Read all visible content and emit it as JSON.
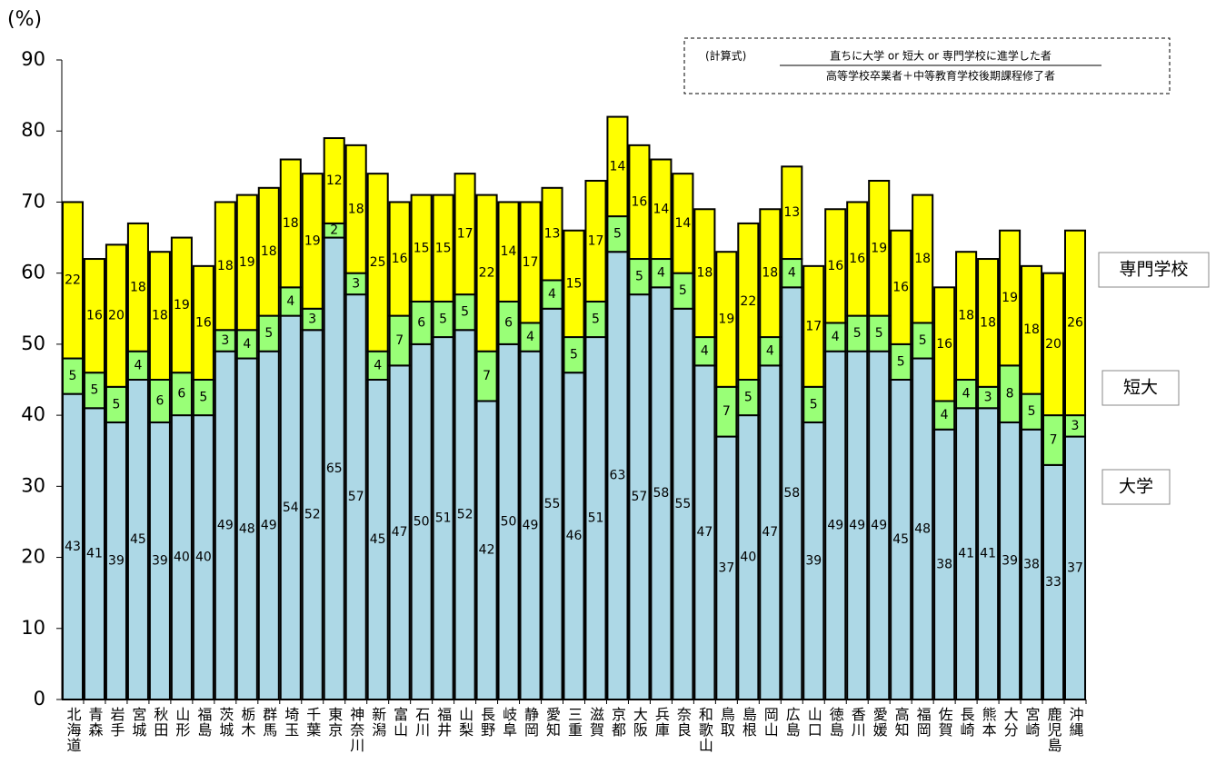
{
  "chart_data": {
    "type": "stacked_bar",
    "y_label": "(%)",
    "annotation": {
      "prefix": "(計算式)",
      "numerator": "直ちに大学 or 短大 or 専門学校に進学した者",
      "denominator": "高等学校卒業者＋中等教育学校後期課程修了者"
    },
    "categories": [
      "北海道",
      "青森",
      "岩手",
      "宮城",
      "秋田",
      "山形",
      "福島",
      "茨城",
      "栃木",
      "群馬",
      "埼玉",
      "千葉",
      "東京",
      "神奈川",
      "新潟",
      "富山",
      "石川",
      "福井",
      "山梨",
      "長野",
      "岐阜",
      "静岡",
      "愛知",
      "三重",
      "滋賀",
      "京都",
      "大阪",
      "兵庫",
      "奈良",
      "和歌山",
      "鳥取",
      "島根",
      "岡山",
      "広島",
      "山口",
      "徳島",
      "香川",
      "愛媛",
      "高知",
      "福岡",
      "佐賀",
      "長崎",
      "熊本",
      "大分",
      "宮崎",
      "鹿児島",
      "沖縄"
    ],
    "series": [
      {
        "name": "大学",
        "color": "#add8e6",
        "values": [
          43,
          41,
          39,
          45,
          39,
          40,
          40,
          49,
          48,
          49,
          54,
          52,
          65,
          57,
          45,
          47,
          50,
          51,
          52,
          42,
          50,
          49,
          55,
          46,
          51,
          63,
          57,
          58,
          55,
          47,
          37,
          40,
          47,
          58,
          39,
          49,
          49,
          49,
          45,
          48,
          38,
          41,
          41,
          39,
          38,
          33,
          37
        ]
      },
      {
        "name": "短大",
        "color": "#99ff77",
        "values": [
          5,
          5,
          5,
          4,
          6,
          6,
          5,
          3,
          4,
          5,
          4,
          3,
          2,
          3,
          4,
          7,
          6,
          5,
          5,
          7,
          6,
          4,
          4,
          5,
          5,
          5,
          5,
          4,
          5,
          4,
          7,
          5,
          4,
          4,
          5,
          4,
          5,
          5,
          5,
          5,
          4,
          4,
          3,
          8,
          5,
          7,
          3
        ]
      },
      {
        "name": "専門学校",
        "color": "#ffff00",
        "values": [
          22,
          16,
          20,
          18,
          18,
          19,
          16,
          18,
          19,
          18,
          18,
          19,
          12,
          18,
          25,
          16,
          15,
          15,
          17,
          22,
          14,
          17,
          13,
          15,
          17,
          14,
          16,
          14,
          14,
          18,
          19,
          22,
          18,
          13,
          17,
          16,
          16,
          19,
          16,
          18,
          16,
          18,
          18,
          19,
          18,
          20,
          26
        ]
      }
    ],
    "ylim": [
      0,
      90
    ],
    "yticks": [
      0,
      10,
      20,
      30,
      40,
      50,
      60,
      70,
      80,
      90
    ]
  }
}
